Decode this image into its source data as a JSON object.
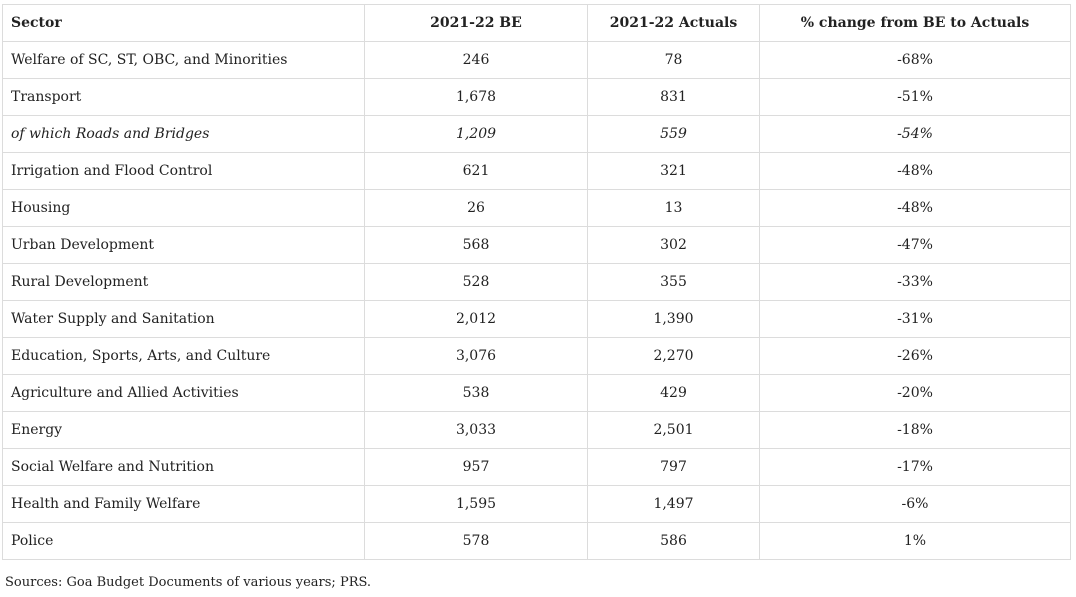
{
  "table": {
    "headers": [
      "Sector",
      "2021-22 BE",
      "2021-22 Actuals",
      "% change from BE to Actuals"
    ],
    "rows": [
      {
        "sector": "Welfare of SC, ST, OBC, and Minorities",
        "be": "246",
        "actuals": "78",
        "pct": "-68%",
        "italic": false
      },
      {
        "sector": "Transport",
        "be": "1,678",
        "actuals": "831",
        "pct": "-51%",
        "italic": false
      },
      {
        "sector": "of which Roads and Bridges",
        "be": "1,209",
        "actuals": "559",
        "pct": "-54%",
        "italic": true
      },
      {
        "sector": "Irrigation and Flood Control",
        "be": "621",
        "actuals": "321",
        "pct": "-48%",
        "italic": false
      },
      {
        "sector": "Housing",
        "be": "26",
        "actuals": "13",
        "pct": "-48%",
        "italic": false
      },
      {
        "sector": "Urban Development",
        "be": "568",
        "actuals": "302",
        "pct": "-47%",
        "italic": false
      },
      {
        "sector": "Rural Development",
        "be": "528",
        "actuals": "355",
        "pct": "-33%",
        "italic": false
      },
      {
        "sector": "Water Supply and Sanitation",
        "be": "2,012",
        "actuals": "1,390",
        "pct": "-31%",
        "italic": false
      },
      {
        "sector": "Education, Sports, Arts, and Culture",
        "be": "3,076",
        "actuals": "2,270",
        "pct": "-26%",
        "italic": false
      },
      {
        "sector": "Agriculture and Allied Activities",
        "be": "538",
        "actuals": "429",
        "pct": "-20%",
        "italic": false
      },
      {
        "sector": "Energy",
        "be": "3,033",
        "actuals": "2,501",
        "pct": "-18%",
        "italic": false
      },
      {
        "sector": "Social Welfare and Nutrition",
        "be": "957",
        "actuals": "797",
        "pct": "-17%",
        "italic": false
      },
      {
        "sector": "Health and Family Welfare",
        "be": "1,595",
        "actuals": "1,497",
        "pct": "-6%",
        "italic": false
      },
      {
        "sector": "Police",
        "be": "578",
        "actuals": "586",
        "pct": "1%",
        "italic": false
      }
    ]
  },
  "source_note": "Sources: Goa Budget Documents of various years; PRS."
}
